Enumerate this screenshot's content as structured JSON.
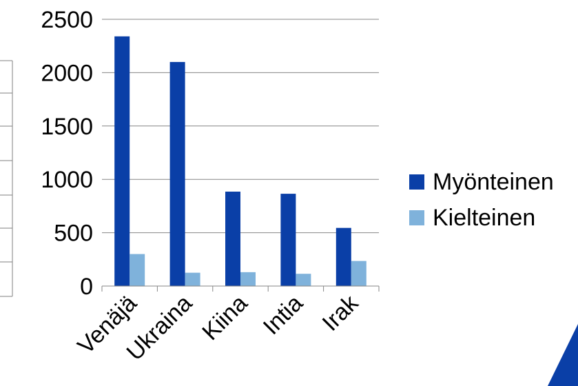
{
  "chart_data": {
    "type": "bar",
    "categories": [
      "Venäjä",
      "Ukraina",
      "Kiina",
      "Intia",
      "Irak"
    ],
    "series": [
      {
        "name": "Myönteinen",
        "color": "#0A3FA7",
        "values": [
          2340,
          2100,
          885,
          865,
          545
        ]
      },
      {
        "name": "Kielteinen",
        "color": "#7FB2DB",
        "values": [
          300,
          125,
          130,
          115,
          235
        ]
      }
    ],
    "ylim": [
      0,
      2500
    ],
    "yticks": [
      0,
      500,
      1000,
      1500,
      2000,
      2500
    ],
    "grid": true,
    "legend_position": "right",
    "title": "",
    "xlabel": "",
    "ylabel": ""
  },
  "accent_colors": {
    "decor_blue": "#0A3FA7"
  }
}
